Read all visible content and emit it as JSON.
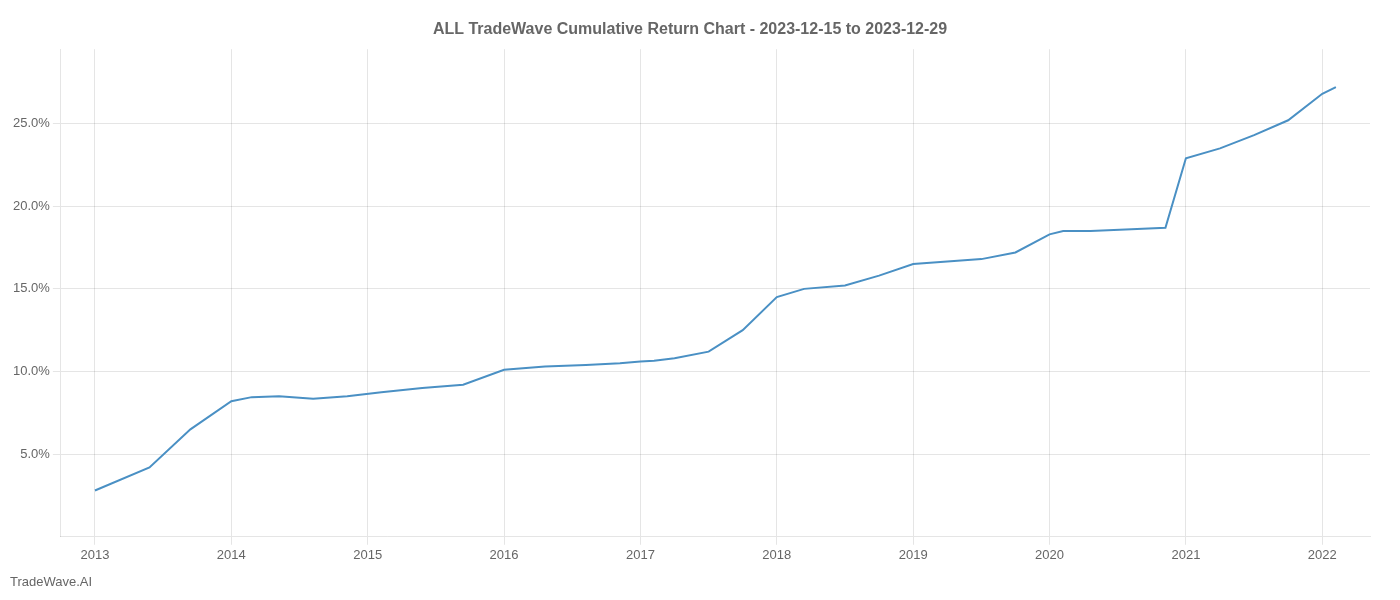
{
  "chart_data": {
    "type": "line",
    "title": "ALL TradeWave Cumulative Return Chart - 2023-12-15 to 2023-12-29",
    "annotations": [
      "TradeWave.AI"
    ],
    "x": [
      2013.0,
      2013.4,
      2013.7,
      2014.0,
      2014.15,
      2014.35,
      2014.6,
      2014.85,
      2015.1,
      2015.4,
      2015.7,
      2016.0,
      2016.3,
      2016.6,
      2016.85,
      2017.0,
      2017.1,
      2017.25,
      2017.5,
      2017.75,
      2018.0,
      2018.2,
      2018.5,
      2018.75,
      2019.0,
      2019.25,
      2019.5,
      2019.75,
      2020.0,
      2020.1,
      2020.3,
      2020.6,
      2020.85,
      2021.0,
      2021.25,
      2021.5,
      2021.75,
      2022.0,
      2022.1
    ],
    "values": [
      2.8,
      4.2,
      6.5,
      8.2,
      8.45,
      8.5,
      8.35,
      8.5,
      8.75,
      9.0,
      9.2,
      10.1,
      10.3,
      10.4,
      10.5,
      10.6,
      10.65,
      10.8,
      11.2,
      12.5,
      14.5,
      15.0,
      15.2,
      15.8,
      16.5,
      16.65,
      16.8,
      17.2,
      18.3,
      18.5,
      18.5,
      18.6,
      18.7,
      22.9,
      23.5,
      24.3,
      25.2,
      26.8,
      27.2
    ],
    "color": "#4a90c4",
    "xlim": [
      2012.75,
      2022.35
    ],
    "xticks": [
      2013,
      2014,
      2015,
      2016,
      2017,
      2018,
      2019,
      2020,
      2021,
      2022
    ],
    "ylim": [
      0.0,
      29.5
    ],
    "yticks": [
      {
        "value": 5.0,
        "label": "5.0%"
      },
      {
        "value": 10.0,
        "label": "10.0%"
      },
      {
        "value": 15.0,
        "label": "15.0%"
      },
      {
        "value": 20.0,
        "label": "20.0%"
      },
      {
        "value": 25.0,
        "label": "25.0%"
      }
    ],
    "grid": true
  }
}
